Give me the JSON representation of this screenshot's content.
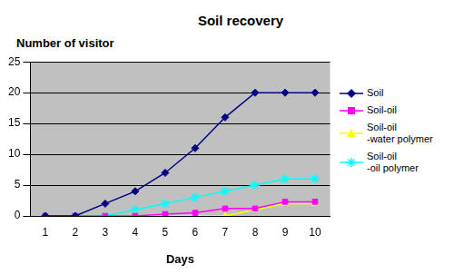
{
  "chart_data": {
    "type": "line",
    "title": "Soil recovery",
    "y_label": "Number of visitor",
    "x_label": "Days",
    "categories": [
      "1",
      "2",
      "3",
      "4",
      "5",
      "6",
      "7",
      "8",
      "9",
      "10"
    ],
    "ylim": [
      0,
      25
    ],
    "yticks": [
      0,
      5,
      10,
      15,
      20,
      25
    ],
    "grid": true,
    "legend": "right",
    "series": [
      {
        "name": "Soil",
        "color": "#000080",
        "marker": "diamond",
        "values": [
          0,
          0,
          2,
          4,
          7,
          11,
          16,
          20,
          20,
          20
        ]
      },
      {
        "name": "Soil-oil",
        "color": "#ff00ff",
        "marker": "square",
        "values": [
          0,
          0,
          0,
          0,
          0.3,
          0.5,
          1.2,
          1.2,
          2.3,
          2.3
        ]
      },
      {
        "name": "Soil-oil -water polymer",
        "color": "#ffff00",
        "marker": "triangle",
        "values": [
          0,
          0,
          0,
          0,
          0,
          0,
          0,
          1,
          2,
          2
        ]
      },
      {
        "name": "Soil-oil -oil polymer",
        "color": "#00ffff",
        "marker": "star",
        "values": [
          0,
          0,
          0,
          1,
          2,
          3,
          4,
          5,
          6,
          6
        ]
      }
    ]
  }
}
